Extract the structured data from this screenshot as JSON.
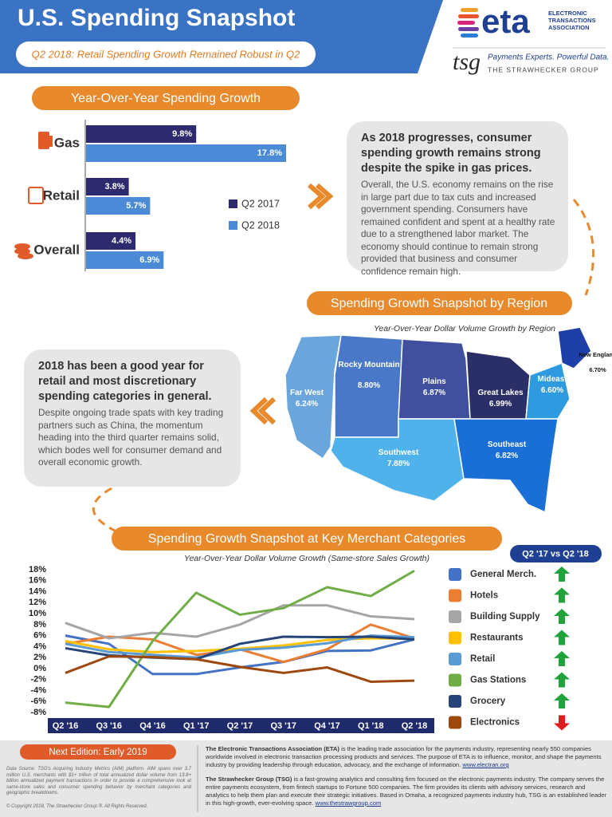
{
  "header": {
    "title": "U.S. Spending Snapshot",
    "subtitle": "Q2 2018: Retail Spending Growth Remained Robust in Q2"
  },
  "logos": {
    "eta": "eta",
    "eta_name": "ELECTRONIC TRANSACTIONS ASSOCIATION",
    "tsg": "tsg",
    "tsg_tagline": "Payments Experts. Powerful Data.",
    "tsg_name": "THE STRAWHECKER GROUP"
  },
  "chart_data": [
    {
      "type": "hbar",
      "title": "Year-Over-Year Spending Growth",
      "categories": [
        "Gas",
        "Retail",
        "Overall"
      ],
      "series": [
        {
          "name": "Q2 2017",
          "color": "#2e2a6e",
          "values": [
            9.8,
            3.8,
            4.4
          ],
          "value_labels": [
            "9.8%",
            "3.8%",
            "4.4%"
          ]
        },
        {
          "name": "Q2 2018",
          "color": "#4a8ad6",
          "values": [
            17.8,
            5.7,
            6.9
          ],
          "value_labels": [
            "17.8%",
            "5.7%",
            "6.9%"
          ]
        }
      ]
    },
    {
      "type": "map",
      "title": "Spending Growth Snapshot by Region",
      "subtitle": "Year-Over-Year Dollar Volume Growth by Region",
      "regions": [
        "Far West",
        "Rocky Mountain",
        "Plains",
        "Great Lakes",
        "Mideast",
        "New England",
        "Southwest",
        "Southeast"
      ],
      "values": [
        6.24,
        8.8,
        6.87,
        6.99,
        6.6,
        6.7,
        7.88,
        6.82
      ],
      "value_labels": [
        "6.24%",
        "8.80%",
        "6.87%",
        "6.99%",
        "6.60%",
        "6.70%",
        "7.88%",
        "6.82%"
      ],
      "colors": [
        "#6aa6dc",
        "#4a78c8",
        "#40509e",
        "#2b2f68",
        "#2e9be0",
        "#1e3fa8",
        "#4fb2ea",
        "#1a6fd6"
      ]
    },
    {
      "type": "line",
      "title": "Spending Growth Snapshot at Key Merchant Categories",
      "subtitle": "Year-Over-Year Dollar Volume Growth (Same-store Sales Growth)",
      "legend_title": "Q2 '17 vs Q2 '18",
      "categories": [
        "Q2 '16",
        "Q3 '16",
        "Q4 '16",
        "Q1 '17",
        "Q2 '17",
        "Q3 '17",
        "Q4 '17",
        "Q1 '18",
        "Q2 '18"
      ],
      "ylim": [
        -8,
        18
      ],
      "yticks": [
        {
          "value": 18,
          "label": "18%"
        },
        {
          "value": 16,
          "label": "16%"
        },
        {
          "value": 14,
          "label": "14%"
        },
        {
          "value": 12,
          "label": "12%"
        },
        {
          "value": 10,
          "label": "10%"
        },
        {
          "value": 8,
          "label": "8%"
        },
        {
          "value": 6,
          "label": "6%"
        },
        {
          "value": 4,
          "label": "4%"
        },
        {
          "value": 2,
          "label": "2%"
        },
        {
          "value": 0,
          "label": "0%"
        },
        {
          "value": -2,
          "label": "-2%"
        },
        {
          "value": -4,
          "label": "-4%"
        },
        {
          "value": -6,
          "label": "-6%"
        },
        {
          "value": -8,
          "label": "-8%"
        }
      ],
      "series": [
        {
          "name": "General Merch.",
          "color": "#4472c4",
          "trend": "up",
          "values": [
            6.0,
            4.5,
            -1.0,
            -1.0,
            0.2,
            1.2,
            3.2,
            3.3,
            5.3
          ]
        },
        {
          "name": "Hotels",
          "color": "#ed7d31",
          "trend": "up",
          "values": [
            4.5,
            5.8,
            5.3,
            2.5,
            3.5,
            1.2,
            3.5,
            8.0,
            5.5
          ]
        },
        {
          "name": "Building Supply",
          "color": "#a5a5a5",
          "trend": "up",
          "values": [
            8.3,
            5.5,
            6.5,
            5.8,
            8.0,
            11.5,
            11.5,
            9.5,
            9.0
          ]
        },
        {
          "name": "Restaurants",
          "color": "#ffc000",
          "trend": "up",
          "values": [
            5.0,
            3.5,
            3.0,
            3.2,
            3.6,
            4.2,
            5.2,
            5.5,
            5.4
          ]
        },
        {
          "name": "Retail",
          "color": "#5b9bd5",
          "trend": "up",
          "values": [
            4.5,
            3.0,
            2.5,
            2.0,
            3.4,
            3.8,
            4.6,
            6.0,
            5.7
          ]
        },
        {
          "name": "Gas Stations",
          "color": "#70ad47",
          "trend": "up",
          "values": [
            -6.2,
            -7.0,
            5.0,
            13.8,
            9.8,
            11.0,
            14.8,
            13.2,
            17.8
          ]
        },
        {
          "name": "Grocery",
          "color": "#264478",
          "trend": "up",
          "values": [
            3.7,
            2.4,
            2.0,
            1.7,
            4.5,
            5.8,
            5.7,
            5.8,
            5.3
          ]
        },
        {
          "name": "Electronics",
          "color": "#9e480e",
          "trend": "down",
          "values": [
            -0.8,
            2.2,
            2.1,
            1.7,
            0.3,
            -0.8,
            0.2,
            -2.4,
            -2.2
          ]
        }
      ]
    }
  ],
  "notes": [
    {
      "heading": "As 2018 progresses, consumer spending growth remains strong despite the spike in gas prices.",
      "body": "Overall, the U.S. economy remains on the rise in large part due to tax cuts and increased government spending. Consumers have remained confident and spent at a healthy rate due to a strengthened labor market. The economy should continue to remain strong provided that business and consumer confidence remain high."
    },
    {
      "heading": "2018 has been a good year for retail and most discretionary spending categories in general.",
      "body": "Despite ongoing trade spats with key trading partners such as China, the momentum heading into the third quarter remains solid, which bodes well for consumer demand and overall economic growth."
    }
  ],
  "footer": {
    "next_edition": "Next Edition: Early 2019",
    "source": "Data Source: TSG's Acquiring Industry Metrics (AIM) platform. AIM spans over 3.7 million U.S. merchants with $1+ trillion of total annualized dollar volume from 13.8+ billion annualized payment transactions in order to provide a comprehensive look at same-store sales and consumer spending behavior by merchant categories and geographic breakdowns.",
    "copyright": "© Copyright 2018, The Strawhecker Group ®.  All Rights Reserved.",
    "eta": {
      "lead": "The Electronic Transactions Association (ETA)",
      "text": " is the leading trade association for the payments industry, representing nearly 550 companies worldwide involved in electronic transaction processing products and services. The purpose of ETA is to influence, monitor, and shape the payments industry by providing leadership through education, advocacy, and the exchange of information. ",
      "link": "www.electran.org"
    },
    "tsg": {
      "lead": "The Strawhecker Group (TSG)",
      "text": " is a fast-growing analytics and consulting firm focused on the electronic payments industry. The company serves the entire payments ecosystem, from fintech startups to Fortune 500 companies. The firm provides its clients with advisory services, research and analytics to help them plan and execute their strategic initiatives. Based in Omaha, a recognized payments industry hub, TSG is an established leader in this high-growth, ever-evolving space. ",
      "link": "www.thestrawgroup.com"
    }
  }
}
